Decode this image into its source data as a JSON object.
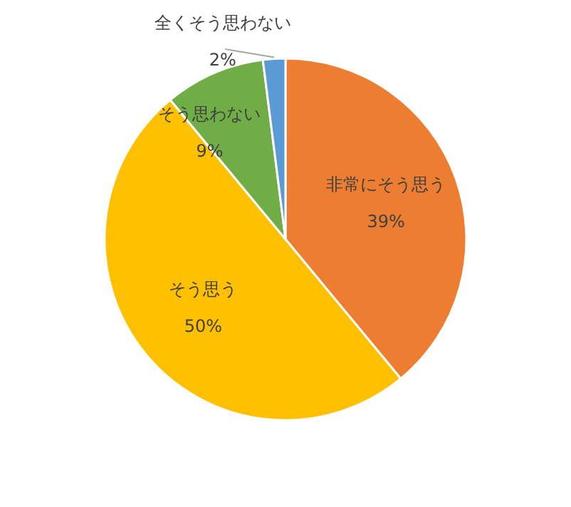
{
  "chart_data": {
    "type": "pie",
    "categories": [
      "非常にそう思う",
      "そう思う",
      "そう思わない",
      "全くそう思わない"
    ],
    "values": [
      39,
      50,
      9,
      2
    ],
    "value_labels": [
      "39%",
      "50%",
      "9%",
      "2%"
    ],
    "colors": [
      "#ed7d31",
      "#ffc000",
      "#70ad47",
      "#5b9bd5"
    ]
  }
}
